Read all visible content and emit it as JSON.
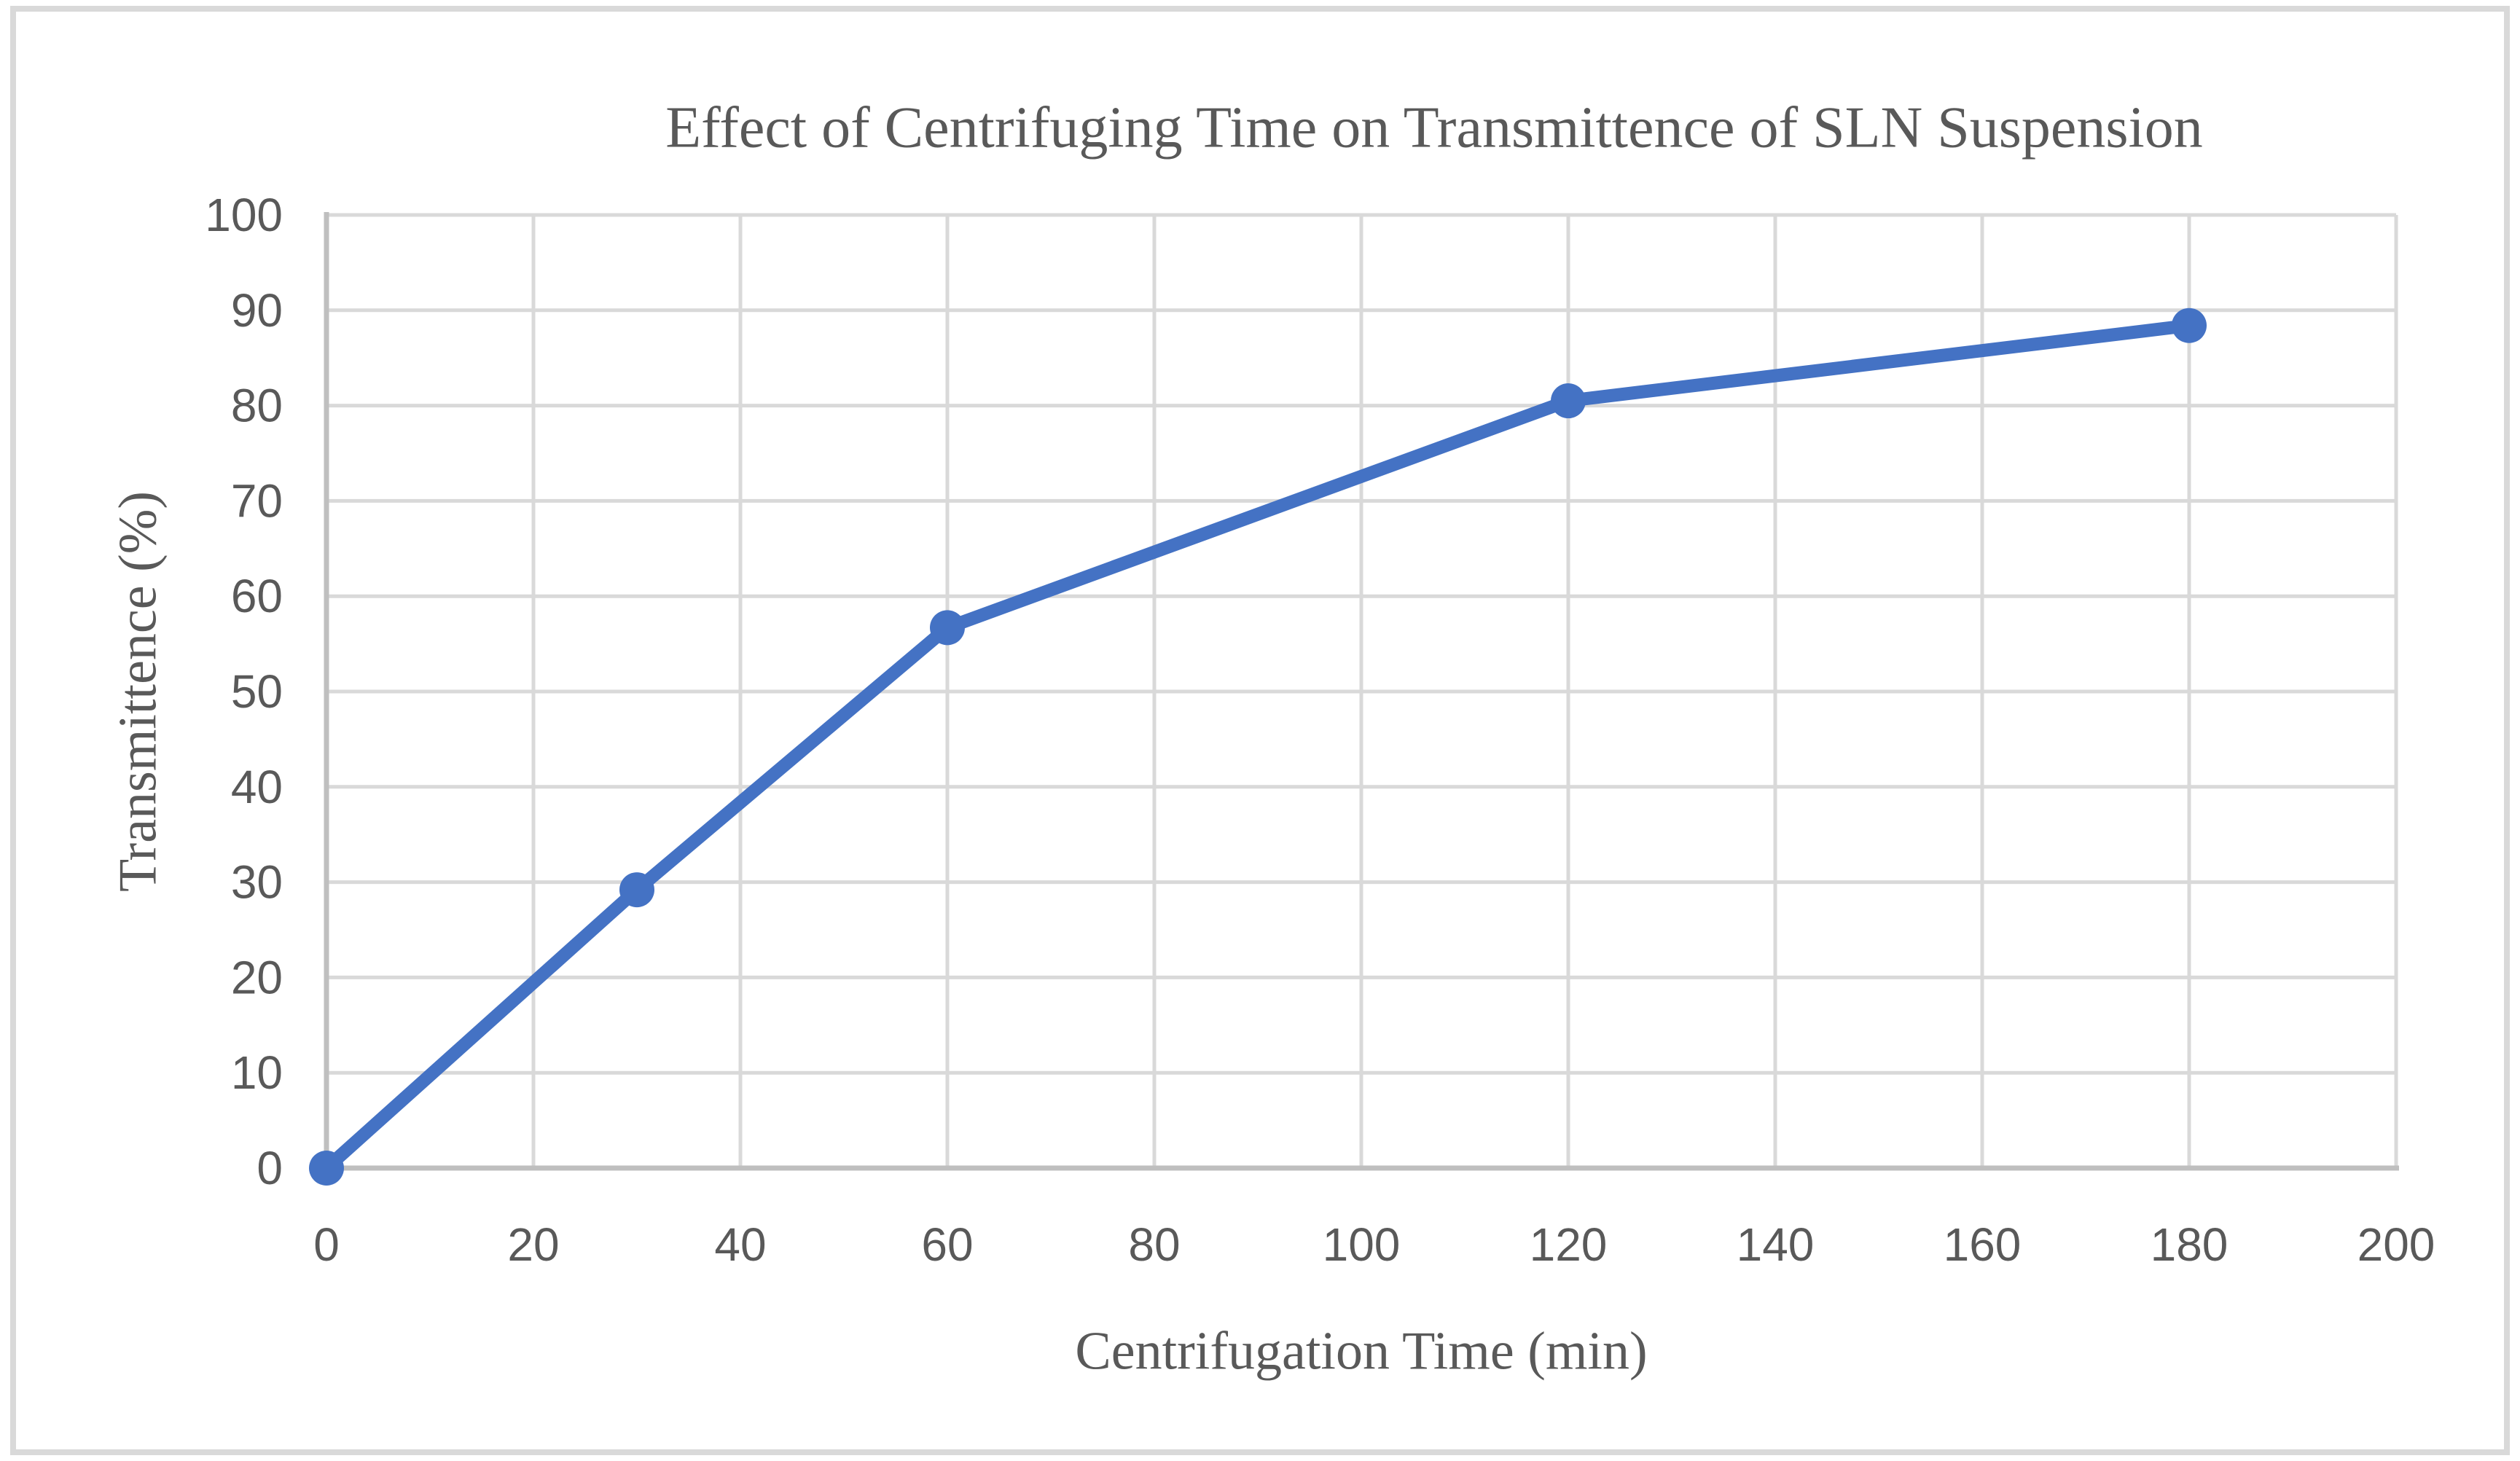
{
  "chart_data": {
    "type": "line",
    "title": "Effect of Centrifuging Time on Transmittence of SLN Suspension",
    "xlabel": "Centrifugation Time (min)",
    "ylabel": "Transmittence (%)",
    "x": [
      0,
      30,
      60,
      120,
      180
    ],
    "y": [
      0,
      29.2,
      56.7,
      80.5,
      88.4
    ],
    "xlim": [
      0,
      200
    ],
    "ylim": [
      0,
      100
    ],
    "x_ticks": [
      0,
      20,
      40,
      60,
      80,
      100,
      120,
      140,
      160,
      180,
      200
    ],
    "y_ticks": [
      0,
      10,
      20,
      30,
      40,
      50,
      60,
      70,
      80,
      90,
      100
    ],
    "grid": true,
    "legend": false,
    "line_color": "#4472C4",
    "marker": "circle"
  },
  "styles": {
    "gridline_color": "#D9D9D9",
    "axis_line_color": "#BFBFBF",
    "text_color": "#595959",
    "border_color": "#D9D9D9",
    "background_color": "#FFFFFF"
  }
}
